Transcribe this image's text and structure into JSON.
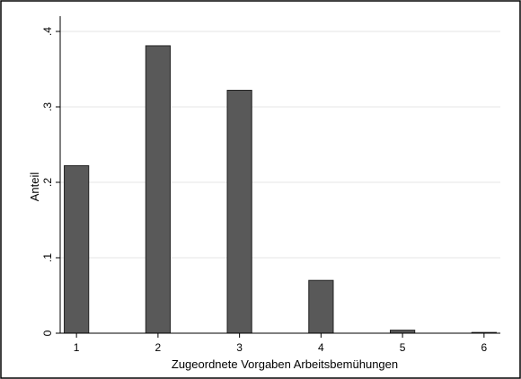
{
  "chart_data": {
    "type": "bar",
    "title": "",
    "xlabel": "Zugeordnete Vorgaben Arbeitsbemühungen",
    "ylabel": "Anteil",
    "x": [
      1,
      2,
      3,
      4,
      5,
      6
    ],
    "values": [
      0.222,
      0.381,
      0.322,
      0.07,
      0.004,
      0.001
    ],
    "xticks": [
      "1",
      "2",
      "3",
      "4",
      "5",
      "6"
    ],
    "yticks": [
      0,
      0.1,
      0.2,
      0.3,
      0.4
    ],
    "ytick_labels": [
      "0",
      ".1",
      ".2",
      ".3",
      ".4"
    ],
    "xlim": [
      0.8,
      6.2
    ],
    "ylim": [
      0,
      0.4
    ],
    "grid": true,
    "colors": {
      "bar": "#595959",
      "bar_edge": "#222222",
      "grid": "#e6e6e6",
      "frame": "#000000"
    }
  }
}
